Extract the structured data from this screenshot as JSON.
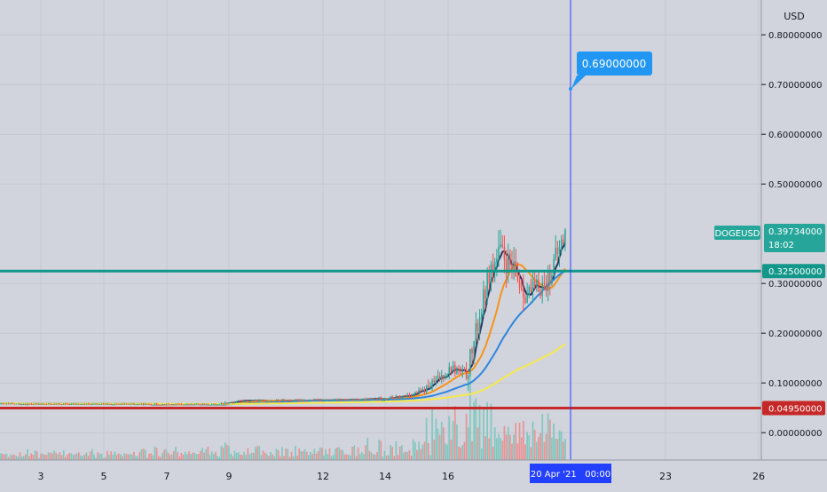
{
  "colors": {
    "background": "#d1d4dc",
    "grid": "#c4c7cf",
    "up": "#26a69a",
    "down": "#ef5350",
    "vol_up": "#7fc8bf",
    "vol_down": "#e89496",
    "ma_fast": "#2b2f5a",
    "ma_mid": "#f7931a",
    "ma_slow": "#2e86de",
    "ma_long": "#f5e84a",
    "level_teal": "#12978a",
    "level_red": "#c62828",
    "crosshair": "#2340ff",
    "callout": "#2196f3",
    "axis_text": "#131722"
  },
  "chart_data": {
    "type": "candlestick",
    "symbol": "DOGEUSD",
    "currency": "USD",
    "y_axis": {
      "unit_label": "USD",
      "range": [
        -0.055,
        0.87
      ],
      "ticks": [
        {
          "value": 0.8,
          "label": "0.80000000"
        },
        {
          "value": 0.7,
          "label": "0.70000000"
        },
        {
          "value": 0.6,
          "label": "0.60000000"
        },
        {
          "value": 0.5,
          "label": "0.50000000"
        },
        {
          "value": 0.3,
          "label": "0.30000000"
        },
        {
          "value": 0.2,
          "label": "0.20000000"
        },
        {
          "value": 0.1,
          "label": "0.10000000"
        },
        {
          "value": 0.0,
          "label": "0.00000000"
        }
      ]
    },
    "x_axis": {
      "ticks": [
        "3",
        "5",
        "7",
        "9",
        "12",
        "14",
        "16",
        "23",
        "26"
      ],
      "crosshair_label": "20 Apr '21   00:00"
    },
    "last_price": {
      "symbol": "DOGEUSD",
      "value": "0.39734000",
      "countdown": "18:02"
    },
    "levels": [
      {
        "value": 0.325,
        "label": "0.32500000",
        "color": "#12978a"
      },
      {
        "value": 0.0495,
        "label": "0.04950000",
        "color": "#c62828"
      }
    ],
    "target_callout": {
      "value": 0.69,
      "label": "0.69000000"
    },
    "candles_phases": [
      {
        "count": 115,
        "from": 0.058,
        "to": 0.057,
        "noise": 0.0012
      },
      {
        "count": 12,
        "from": 0.057,
        "to": 0.064,
        "noise": 0.0025
      },
      {
        "count": 65,
        "from": 0.064,
        "to": 0.066,
        "noise": 0.0018
      },
      {
        "count": 20,
        "from": 0.066,
        "to": 0.072,
        "noise": 0.003
      },
      {
        "count": 12,
        "from": 0.072,
        "to": 0.085,
        "noise": 0.005
      },
      {
        "count": 14,
        "from": 0.085,
        "to": 0.13,
        "noise": 0.01
      },
      {
        "count": 8,
        "from": 0.13,
        "to": 0.115,
        "noise": 0.012
      },
      {
        "count": 12,
        "from": 0.115,
        "to": 0.32,
        "noise": 0.02
      },
      {
        "count": 6,
        "from": 0.32,
        "to": 0.36,
        "noise": 0.03
      },
      {
        "count": 14,
        "from": 0.36,
        "to": 0.28,
        "noise": 0.025
      },
      {
        "count": 10,
        "from": 0.28,
        "to": 0.3,
        "noise": 0.02
      },
      {
        "count": 10,
        "from": 0.3,
        "to": 0.4,
        "noise": 0.022
      }
    ],
    "moving_averages": [
      {
        "color": "#2b2f5a",
        "lag": 4
      },
      {
        "color": "#f7931a",
        "lag": 16
      },
      {
        "color": "#2e86de",
        "lag": 40
      },
      {
        "color": "#f5e84a",
        "lag": 120
      }
    ]
  }
}
